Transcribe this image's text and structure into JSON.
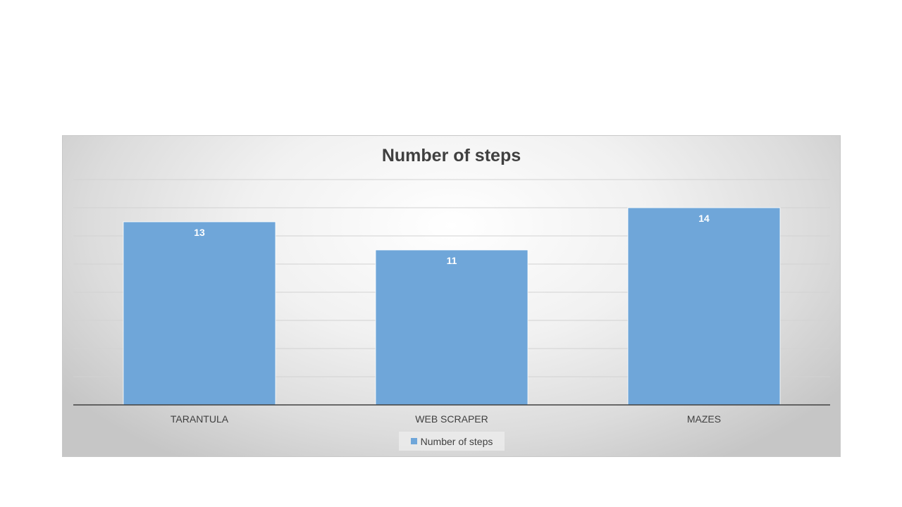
{
  "chart_data": {
    "type": "bar",
    "title": "Number of steps",
    "categories": [
      "TARANTULA",
      "WEB SCRAPER",
      "MAZES"
    ],
    "series": [
      {
        "name": "Number of steps",
        "values": [
          13,
          11,
          14
        ],
        "color": "#6fa6d9"
      }
    ],
    "xlabel": "",
    "ylabel": "",
    "ylim": [
      0,
      16
    ],
    "grid": true,
    "data_labels": true,
    "legend": "bottom"
  }
}
